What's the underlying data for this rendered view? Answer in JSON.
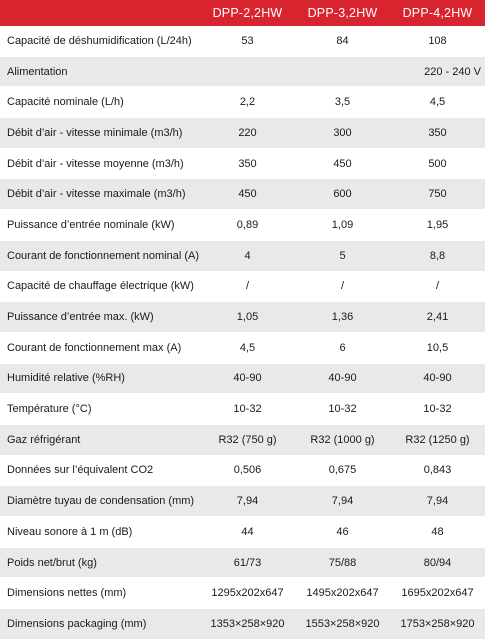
{
  "header": {
    "models": [
      "DPP-2,2HW",
      "DPP-3,2HW",
      "DPP-4,2HW"
    ]
  },
  "rows": [
    {
      "label": "Capacité de déshumidification (L/24h)",
      "values": [
        "53",
        "84",
        "108"
      ]
    },
    {
      "label": "Alimentation",
      "span_value": "220 - 240 V"
    },
    {
      "label": "Capacité nominale (L/h)",
      "values": [
        "2,2",
        "3,5",
        "4,5"
      ]
    },
    {
      "label": "Débit d’air - vitesse minimale (m3/h)",
      "values": [
        "220",
        "300",
        "350"
      ]
    },
    {
      "label": "Débit d’air - vitesse moyenne (m3/h)",
      "values": [
        "350",
        "450",
        "500"
      ]
    },
    {
      "label": "Débit d’air - vitesse maximale (m3/h)",
      "values": [
        "450",
        "600",
        "750"
      ]
    },
    {
      "label": "Puissance d’entrée nominale (kW)",
      "values": [
        "0,89",
        "1,09",
        "1,95"
      ]
    },
    {
      "label": "Courant de fonctionnement nominal (A)",
      "values": [
        "4",
        "5",
        "8,8"
      ]
    },
    {
      "label": "Capacité de chauffage électrique (kW)",
      "values": [
        "/",
        "/",
        "/"
      ]
    },
    {
      "label": "Puissance d’entrée max. (kW)",
      "values": [
        "1,05",
        "1,36",
        "2,41"
      ]
    },
    {
      "label": "Courant de fonctionnement max (A)",
      "values": [
        "4,5",
        "6",
        "10,5"
      ]
    },
    {
      "label": "Humidité relative (%RH)",
      "values": [
        "40-90",
        "40-90",
        "40-90"
      ]
    },
    {
      "label": "Température (°C)",
      "values": [
        "10-32",
        "10-32",
        "10-32"
      ]
    },
    {
      "label": "Gaz réfrigérant",
      "values": [
        "R32 (750 g)",
        "R32 (1000 g)",
        "R32 (1250 g)"
      ]
    },
    {
      "label": "Données sur l’équivalent CO2",
      "values": [
        "0,506",
        "0,675",
        "0,843"
      ]
    },
    {
      "label": "Diamètre tuyau de condensation (mm)",
      "values": [
        "7,94",
        "7,94",
        "7,94"
      ]
    },
    {
      "label": "Niveau sonore à 1 m (dB)",
      "values": [
        "44",
        "46",
        "48"
      ]
    },
    {
      "label": "Poids net/brut (kg)",
      "values": [
        "61/73",
        "75/88",
        "80/94"
      ]
    },
    {
      "label": "Dimensions nettes (mm)",
      "values": [
        "1295x202x647",
        "1495x202x647",
        "1695x202x647"
      ]
    },
    {
      "label": "Dimensions packaging (mm)",
      "values": [
        "1353×258×920",
        "1553×258×920",
        "1753×258×920"
      ]
    }
  ],
  "colors": {
    "header_bg": "#d8242e",
    "stripe": "#e9e9ea"
  }
}
